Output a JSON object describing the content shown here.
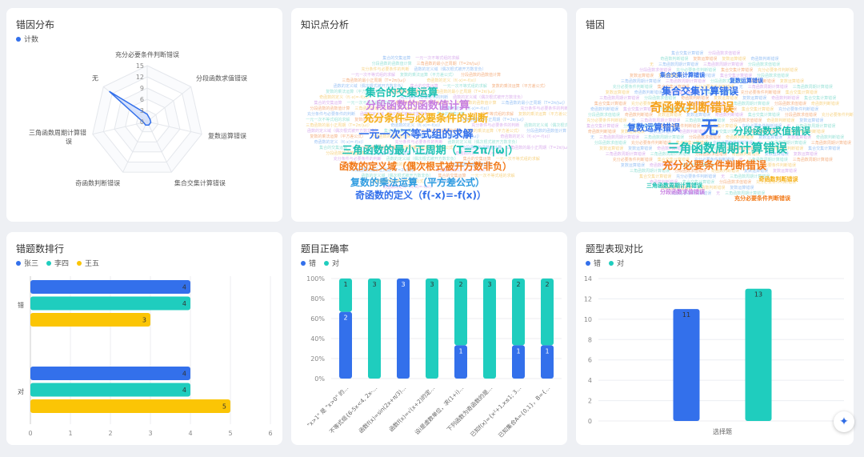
{
  "cards": {
    "radar": {
      "title": "错因分布"
    },
    "wordcloud1": {
      "title": "知识点分析"
    },
    "wordcloud2": {
      "title": "错因"
    },
    "ranking": {
      "title": "错题数排行"
    },
    "accuracy": {
      "title": "题目正确率"
    },
    "compare": {
      "title": "题型表现对比"
    }
  },
  "colors": {
    "blue": "#3370eb",
    "teal": "#1fcdbe",
    "yellow": "#fbc505",
    "radar_fill": "#c9d8fb"
  },
  "fab_icon": "sparkle-icon",
  "chart_data": [
    {
      "id": "radar",
      "type": "radar",
      "title": "错因分布",
      "legend": [
        "计数"
      ],
      "indicators": [
        "充分必要条件判断错误",
        "分段函数求值错误",
        "复数运算错误",
        "集合交集计算错误",
        "奇函数判断错误",
        "三角函数周期计算错误",
        "无"
      ],
      "ticks": [
        0,
        3,
        6,
        9,
        12,
        15
      ],
      "max": 15,
      "values": [
        2,
        1,
        1,
        1,
        1,
        1,
        13
      ]
    },
    {
      "id": "wordcloud1",
      "type": "wordcloud",
      "title": "知识点分析",
      "words": [
        {
          "text": "集合的交集运算",
          "color": "#1ec2b3"
        },
        {
          "text": "分段函数的函数值计算",
          "color": "#c77ee0"
        },
        {
          "text": "充分条件与必要条件的判断",
          "color": "#f5b21c"
        },
        {
          "text": "一元一次不等式组的求解",
          "color": "#3370eb"
        },
        {
          "text": "三角函数的最小正周期（T=2π/|ω|）",
          "color": "#1ec2b3"
        },
        {
          "text": "函数的定义域（偶次根式被开方数非负）",
          "color": "#f27a1a"
        },
        {
          "text": "复数的乘法运算（平方差公式）",
          "color": "#2f9ce0"
        },
        {
          "text": "奇函数的定义（f(-x)=-f(x)）",
          "color": "#3370eb"
        }
      ]
    },
    {
      "id": "wordcloud2",
      "type": "wordcloud",
      "title": "错因",
      "words": [
        {
          "text": "集合交集计算错误",
          "color": "#3370eb"
        },
        {
          "text": "奇函数判断错误",
          "color": "#f5a21c"
        },
        {
          "text": "无",
          "color": "#3370eb"
        },
        {
          "text": "分段函数求值错误",
          "color": "#1ec2b3"
        },
        {
          "text": "复数运算错误",
          "color": "#3370eb"
        },
        {
          "text": "三角函数周期计算错误",
          "color": "#1ec2b3"
        },
        {
          "text": "充分必要条件判断错误",
          "color": "#f27a1a"
        },
        {
          "text": "复数运算错误",
          "color": "#3370eb"
        },
        {
          "text": "三角函数周期计算错误",
          "color": "#1ec2b3"
        },
        {
          "text": "集合交集计算错误",
          "color": "#3370eb"
        },
        {
          "text": "奇函数判断错误",
          "color": "#f5b21c"
        },
        {
          "text": "分段函数求值错误",
          "color": "#c77ee0"
        },
        {
          "text": "充分必要条件判断错误",
          "color": "#f27a1a"
        }
      ]
    },
    {
      "id": "ranking",
      "type": "bar",
      "orientation": "horizontal",
      "title": "错题数排行",
      "categories": [
        "错",
        "对"
      ],
      "series": [
        {
          "name": "张三",
          "color": "#3370eb",
          "values": [
            4,
            4
          ]
        },
        {
          "name": "李四",
          "color": "#1fcdbe",
          "values": [
            4,
            4
          ]
        },
        {
          "name": "王五",
          "color": "#fbc505",
          "values": [
            3,
            5
          ]
        }
      ],
      "xticks": [
        0,
        1,
        2,
        3,
        4,
        5,
        6
      ],
      "xlim": [
        0,
        6
      ]
    },
    {
      "id": "accuracy",
      "type": "bar",
      "stacked": "percent",
      "title": "题目正确率",
      "legend": [
        {
          "name": "错",
          "color": "#3370eb"
        },
        {
          "name": "对",
          "color": "#1fcdbe"
        }
      ],
      "categories": [
        "\"x>1\" 是 \"x>0\" 的…",
        "不等式组{6-5x<4, 2x-…",
        "函数f(x)=sin(2x+π/3)…",
        "函数f(x)=√(x+2)的定…",
        "设i是虚数单位，求(1+i)…",
        "下列函数为奇函数的是…",
        "已知f(x)={x²+1,x≤1; 3…",
        "已知集合A={0,1}，B={…"
      ],
      "wrong": [
        2,
        0,
        3,
        0,
        1,
        0,
        1,
        1
      ],
      "right": [
        1,
        3,
        0,
        3,
        2,
        3,
        2,
        2
      ],
      "yticks": [
        "0%",
        "20%",
        "40%",
        "60%",
        "80%",
        "100%"
      ]
    },
    {
      "id": "compare",
      "type": "bar",
      "title": "题型表现对比",
      "legend": [
        {
          "name": "错",
          "color": "#3370eb"
        },
        {
          "name": "对",
          "color": "#1fcdbe"
        }
      ],
      "categories": [
        "选择题"
      ],
      "series": [
        {
          "name": "错",
          "color": "#3370eb",
          "values": [
            11
          ]
        },
        {
          "name": "对",
          "color": "#1fcdbe",
          "values": [
            13
          ]
        }
      ],
      "yticks": [
        0,
        2,
        4,
        6,
        8,
        10,
        12,
        14
      ],
      "ylim": [
        0,
        14
      ]
    }
  ]
}
